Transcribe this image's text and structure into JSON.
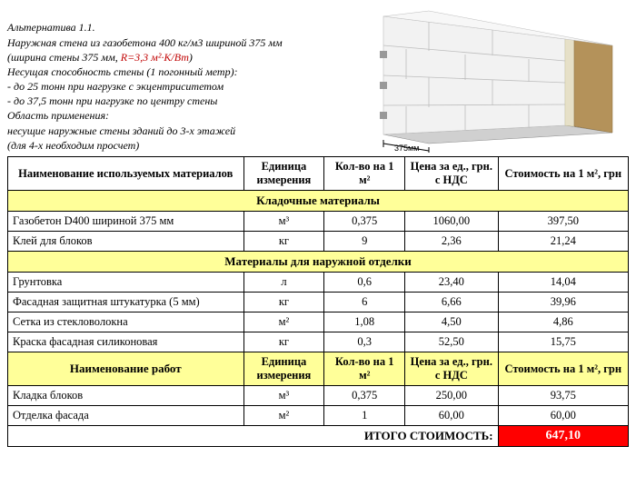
{
  "header": {
    "title_line": "Альтернатива 1.1.",
    "line2_a": "Наружная стена из газобетона  400 кг/м3 шириной 375  мм",
    "line3_a": "  (ширина стены 375 мм,  ",
    "line3_r": "R=3,3  м²·К/Вт",
    "line3_b": ")",
    "line4": "Несущая способность стены (1 погонный метр):",
    "line5": "- до 25 тонн при нагрузке с  экцентриситетом",
    "line6": "- до 37,5 тонн при нагрузке по центру стены",
    "line7": "Область применения:",
    "line8": "несущие наружные стены зданий до 3-х этажей",
    "line9": "(для 4-х необходим просчет)"
  },
  "illus": {
    "block_color": "#eeeeee",
    "block_border": "#bdbdbd",
    "joint_color": "#9e9e9e",
    "render_color": "#b4925a",
    "base_color": "#d0d0d0",
    "dim_label": "375мм"
  },
  "columns": {
    "materials": "Наименование используемых материалов",
    "unit": "Единица измерения",
    "qty": "Кол-во на 1 м²",
    "price": "Цена за ед., грн. с НДС",
    "cost": "Стоимость на 1 м², грн"
  },
  "sections": [
    {
      "title": "Кладочные материалы",
      "rows": [
        {
          "name": "Газобетон D400 шириной 375 мм",
          "unit": "м³",
          "qty": "0,375",
          "price": "1060,00",
          "cost": "397,50"
        },
        {
          "name": "Клей для блоков",
          "unit": "кг",
          "qty": "9",
          "price": "2,36",
          "cost": "21,24"
        }
      ]
    },
    {
      "title": "Материалы для наружной отделки",
      "rows": [
        {
          "name": "Грунтовка",
          "unit": "л",
          "qty": "0,6",
          "price": "23,40",
          "cost": "14,04"
        },
        {
          "name": "Фасадная защитная штукатурка (5 мм)",
          "unit": "кг",
          "qty": "6",
          "price": "6,66",
          "cost": "39,96"
        },
        {
          "name": "Сетка из стекловолокна",
          "unit": "м²",
          "qty": "1,08",
          "price": "4,50",
          "cost": "4,86"
        },
        {
          "name": "Краска фасадная силиконовая",
          "unit": "кг",
          "qty": "0,3",
          "price": "52,50",
          "cost": "15,75"
        }
      ]
    }
  ],
  "works": {
    "header": "Наименование работ",
    "rows": [
      {
        "name": "Кладка блоков",
        "unit": "м³",
        "qty": "0,375",
        "price": "250,00",
        "cost": "93,75"
      },
      {
        "name": "Отделка фасада",
        "unit": "м²",
        "qty": "1",
        "price": "60,00",
        "cost": "60,00"
      }
    ]
  },
  "total": {
    "label": "ИТОГО СТОИМОСТЬ:",
    "value": "647,10"
  }
}
